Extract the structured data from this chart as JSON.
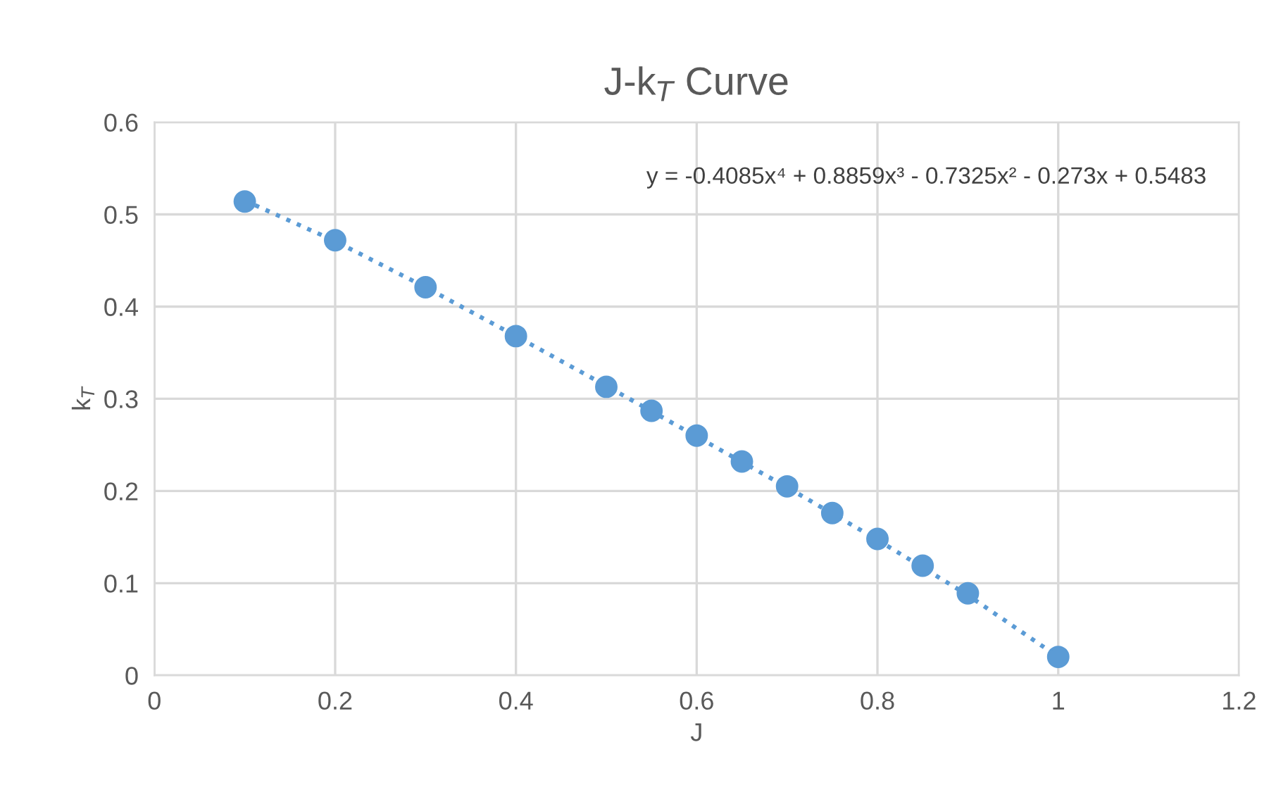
{
  "chart_data": {
    "type": "scatter",
    "title": "J-k$_{T}$ Curve",
    "xlabel": "J",
    "ylabel": "k$_{T}$",
    "series": [
      {
        "color": "#5b9bd5",
        "marker": "circle",
        "x": [
          0.1,
          0.2,
          0.3,
          0.4,
          0.5,
          0.55,
          0.6,
          0.65,
          0.7,
          0.75,
          0.8,
          0.85,
          0.9,
          1.0
        ],
        "values": [
          0.514,
          0.472,
          0.421,
          0.368,
          0.313,
          0.287,
          0.26,
          0.232,
          0.205,
          0.176,
          0.148,
          0.119,
          0.089,
          0.02
        ]
      },
      {
        "type": "line",
        "color": "#5b9bd5",
        "line_style": "dotted",
        "marker": "none",
        "x": [
          0.1,
          0.2,
          0.3,
          0.4,
          0.5,
          0.6,
          0.7,
          0.8,
          0.9,
          1.0
        ],
        "values": [
          0.515,
          0.471,
          0.421,
          0.368,
          0.314,
          0.259,
          0.204,
          0.147,
          0.087,
          0.02
        ]
      }
    ],
    "annotations": [
      "y = -0.4085x⁴ + 0.8859x³ - 0.7325x² - 0.273x + 0.5483"
    ],
    "xlim": [
      0,
      1.2
    ],
    "xticks": [
      0,
      0.2,
      0.4,
      0.6,
      0.8,
      1,
      1.2
    ],
    "ylim": [
      0,
      0.6
    ],
    "yticks": [
      0,
      0.1,
      0.2,
      0.3,
      0.4,
      0.5,
      0.6
    ],
    "grid": true,
    "legend": false
  }
}
